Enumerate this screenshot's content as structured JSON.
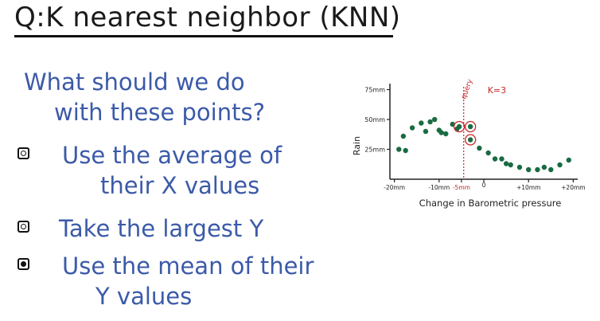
{
  "title": "Q:K nearest neighbor (KNN)",
  "question": [
    "What should we do",
    "with these points?"
  ],
  "options": [
    {
      "lines": [
        "Use the average of",
        "their X values"
      ],
      "checked": false
    },
    {
      "lines": [
        "Take the largest Y"
      ],
      "checked": false
    },
    {
      "lines": [
        "Use the mean of their",
        "Y values"
      ],
      "checked": true
    }
  ],
  "colors": {
    "points": "#1a6b43",
    "query": "#c62828",
    "text": "#3b5aa8"
  },
  "chart_data": {
    "type": "scatter",
    "xlabel": "Change in Barometric pressure",
    "ylabel": "Rain",
    "x_ticks": [
      "-20mm",
      "-10mm",
      "-5mm",
      "0",
      "+10mm",
      "+20mm"
    ],
    "y_ticks": [
      "75mm",
      "50mm",
      "25mm"
    ],
    "xlim": [
      -21,
      21
    ],
    "ylim": [
      0,
      80
    ],
    "query_label": "query",
    "query_x": -4.5,
    "k_label": "K=3",
    "points": [
      {
        "x": -19,
        "y": 25
      },
      {
        "x": -17.5,
        "y": 24
      },
      {
        "x": -18,
        "y": 36
      },
      {
        "x": -16,
        "y": 43
      },
      {
        "x": -14,
        "y": 47
      },
      {
        "x": -12,
        "y": 48
      },
      {
        "x": -13,
        "y": 40
      },
      {
        "x": -11,
        "y": 50
      },
      {
        "x": -10,
        "y": 41
      },
      {
        "x": -9.5,
        "y": 39
      },
      {
        "x": -8.5,
        "y": 38
      },
      {
        "x": -7,
        "y": 46
      },
      {
        "x": -6,
        "y": 42
      },
      {
        "x": -5.5,
        "y": 44
      },
      {
        "x": -3,
        "y": 44
      },
      {
        "x": -3,
        "y": 33
      },
      {
        "x": -1,
        "y": 26
      },
      {
        "x": 1,
        "y": 22
      },
      {
        "x": 2.5,
        "y": 17
      },
      {
        "x": 4,
        "y": 17
      },
      {
        "x": 5,
        "y": 13
      },
      {
        "x": 6,
        "y": 12
      },
      {
        "x": 8,
        "y": 10
      },
      {
        "x": 10,
        "y": 8
      },
      {
        "x": 12,
        "y": 8
      },
      {
        "x": 13.5,
        "y": 10
      },
      {
        "x": 15,
        "y": 8
      },
      {
        "x": 17,
        "y": 12
      },
      {
        "x": 19,
        "y": 16
      }
    ],
    "neighbors": [
      {
        "x": -5.5,
        "y": 44
      },
      {
        "x": -3,
        "y": 44
      },
      {
        "x": -3,
        "y": 33
      }
    ]
  }
}
